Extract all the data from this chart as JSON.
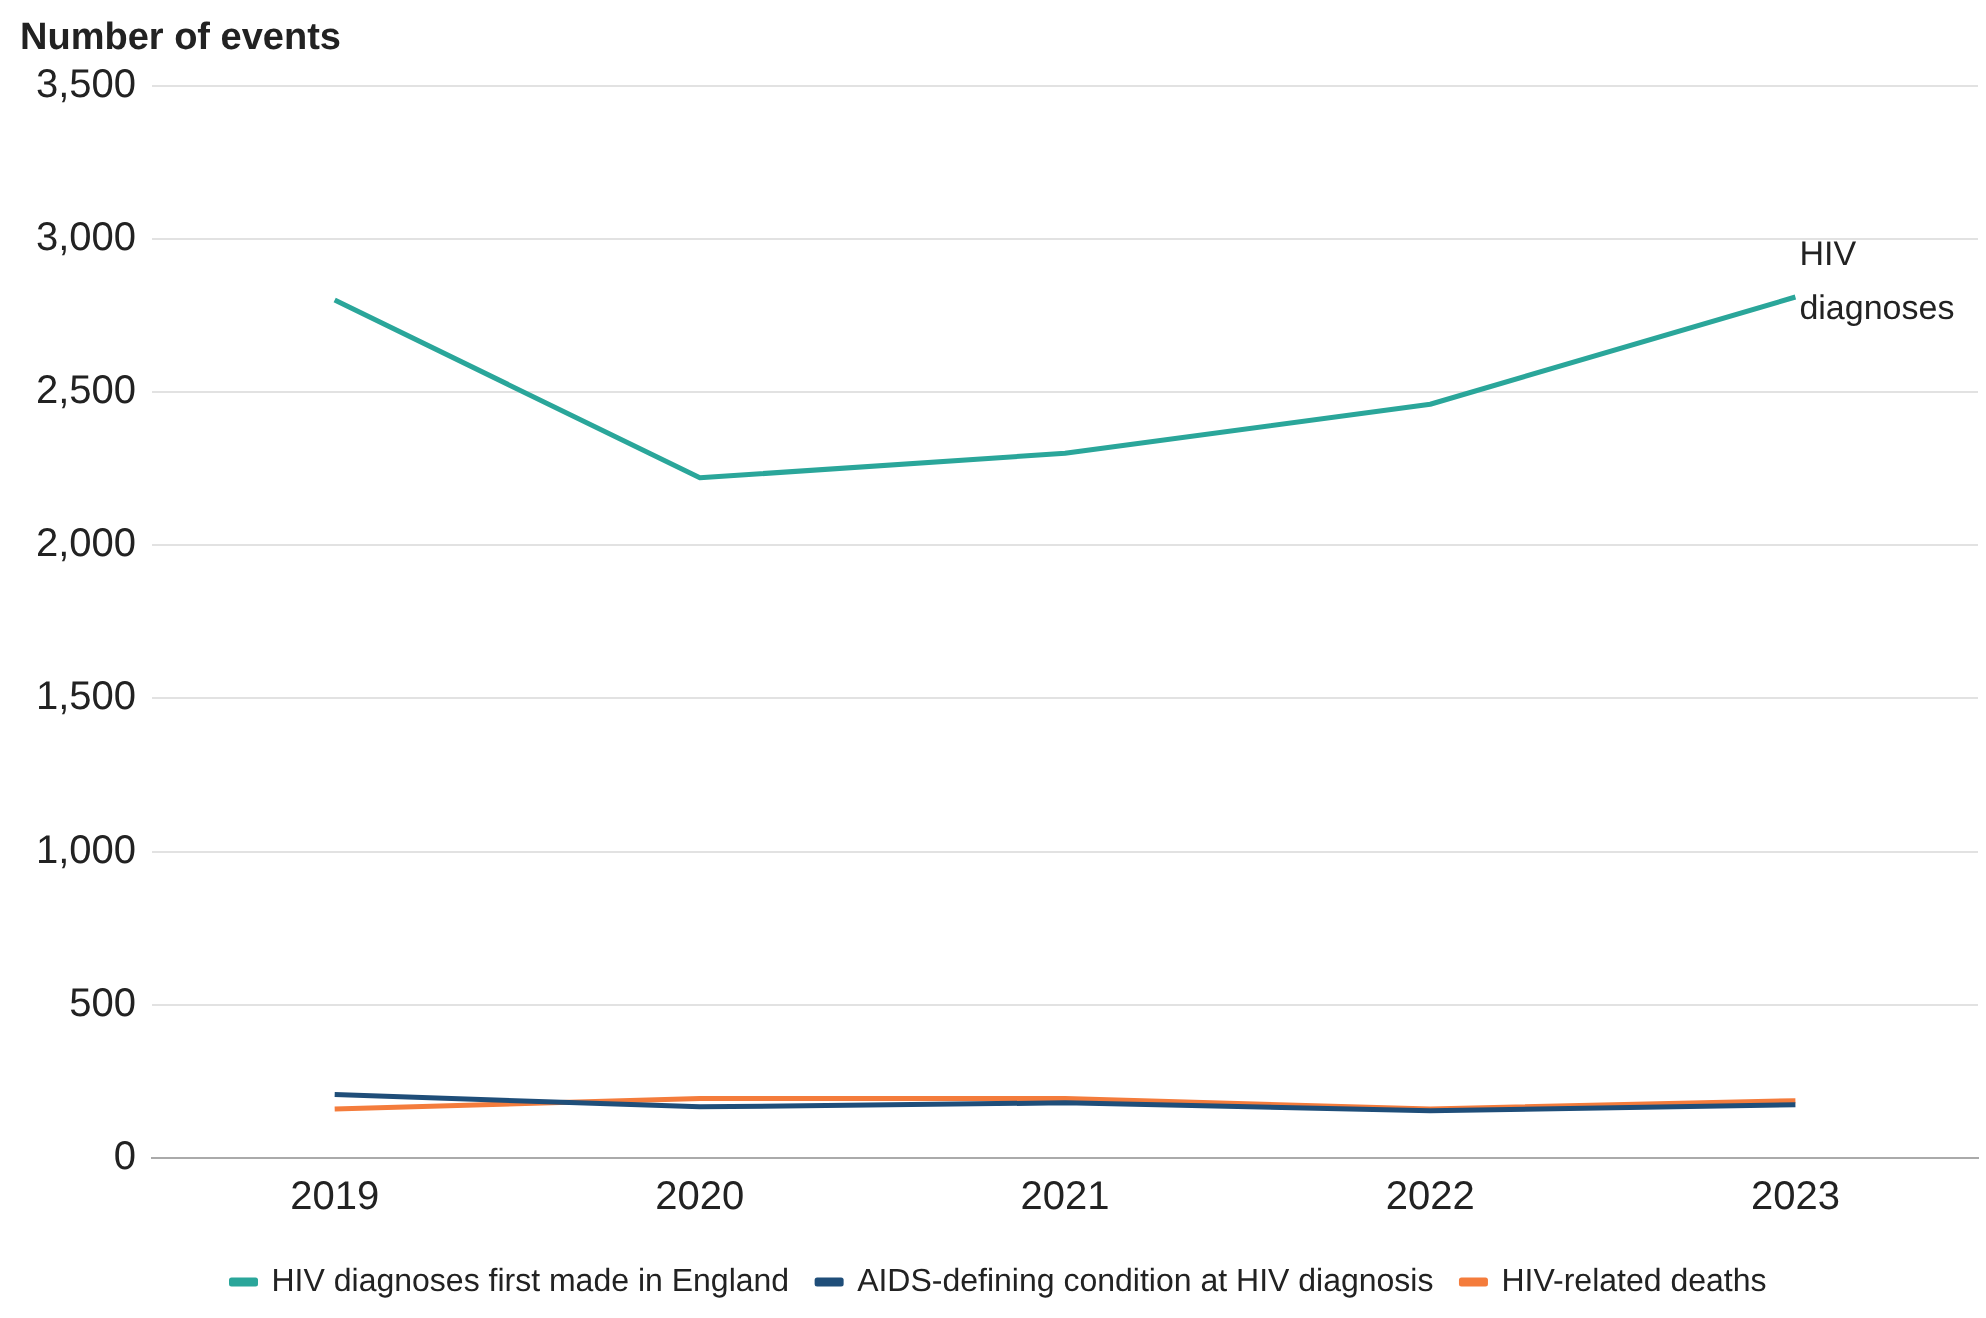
{
  "chart_data": {
    "type": "line",
    "ylabel": "Number of events",
    "categories": [
      "2019",
      "2020",
      "2021",
      "2022",
      "2023"
    ],
    "series": [
      {
        "name": "HIV diagnoses first made in England",
        "color": "#2aa69a",
        "values": [
          2800,
          2220,
          2300,
          2460,
          2810
        ]
      },
      {
        "name": "AIDS-defining condition at HIV diagnosis",
        "color": "#1f4e79",
        "values": [
          207,
          167,
          180,
          154,
          174
        ]
      },
      {
        "name": "HIV-related deaths",
        "color": "#f47c3c",
        "values": [
          160,
          194,
          194,
          160,
          187
        ]
      }
    ],
    "ylim": [
      0,
      3500
    ],
    "yticks": [
      {
        "value": 0,
        "label": "0"
      },
      {
        "value": 500,
        "label": "500"
      },
      {
        "value": 1000,
        "label": "1,000"
      },
      {
        "value": 1500,
        "label": "1,500"
      },
      {
        "value": 2000,
        "label": "2,000"
      },
      {
        "value": 2500,
        "label": "2,500"
      },
      {
        "value": 3000,
        "label": "3,000"
      },
      {
        "value": 3500,
        "label": "3,500"
      }
    ],
    "grid": "y",
    "legend": "bottom",
    "marker": "none",
    "line_style": "solid",
    "annotations": [
      {
        "text": "HIV diagnoses",
        "x": "2023",
        "y": 2810
      }
    ]
  }
}
